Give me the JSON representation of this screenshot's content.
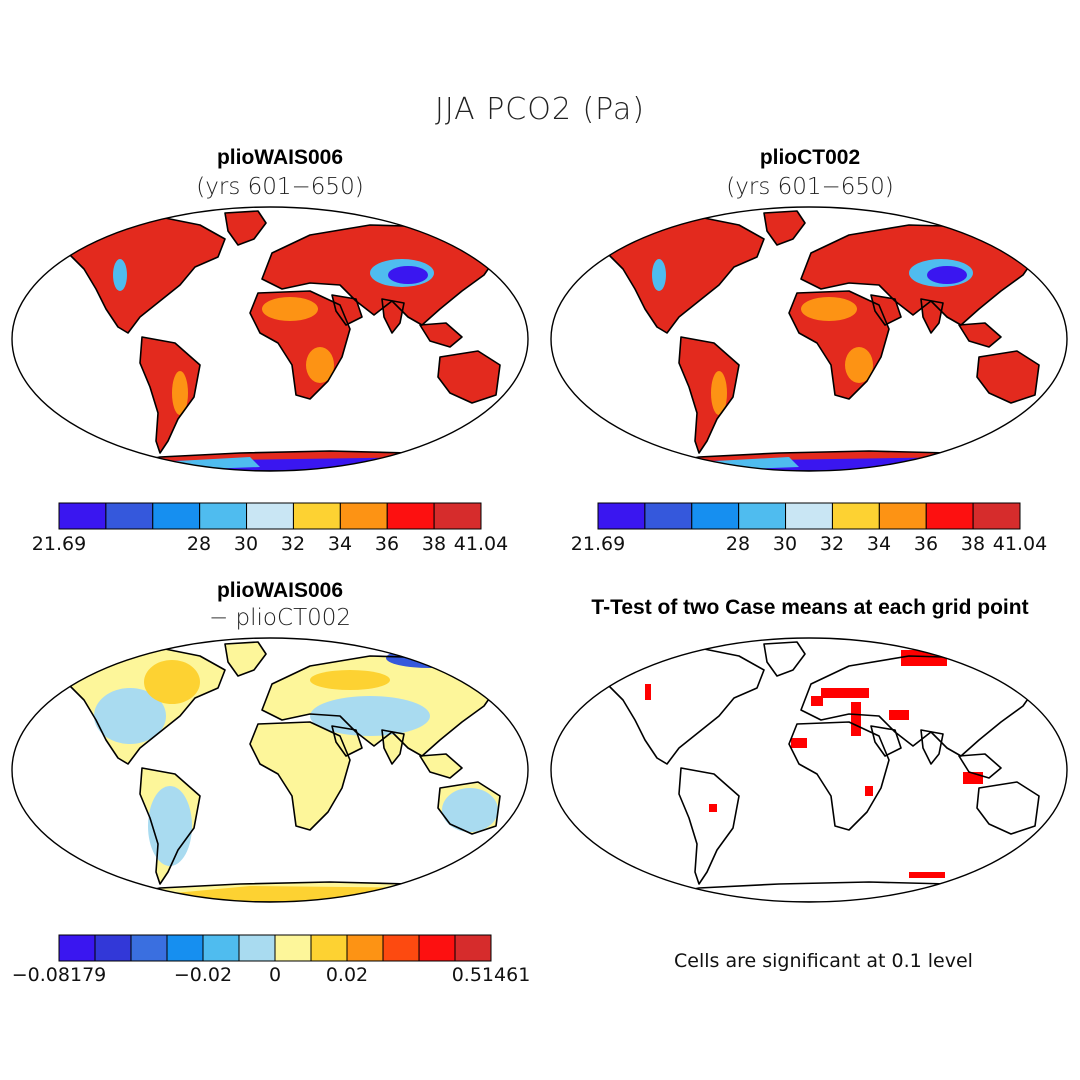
{
  "title": "JJA PCO2 (Pa)",
  "panels": [
    {
      "id": "p1",
      "title": "plioWAIS006",
      "subtitle": "(yrs 601−650)",
      "scheme": "abs"
    },
    {
      "id": "p2",
      "title": "plioCT002",
      "subtitle": "(yrs 601−650)",
      "scheme": "abs"
    },
    {
      "id": "p3",
      "title": "plioWAIS006",
      "subtitle": "− plioCT002",
      "scheme": "diff"
    },
    {
      "id": "p4",
      "title": "T-Test of two Case means at each grid point",
      "subtitle": "",
      "scheme": "ttest"
    }
  ],
  "colorbar_abs": {
    "colors": [
      "#3a16f0",
      "#3558dc",
      "#168ff0",
      "#4fbcef",
      "#c9e6f4",
      "#fdd232",
      "#fd9314",
      "#fd1010",
      "#d62c2c"
    ],
    "ticks": [
      "21.69",
      "28",
      "30",
      "32",
      "34",
      "36",
      "38",
      "41.04"
    ]
  },
  "colorbar_diff": {
    "colors": [
      "#3a16f0",
      "#3238d8",
      "#3a6fe0",
      "#168ff0",
      "#4fbcef",
      "#a9dbf0",
      "#fdf69a",
      "#fdd232",
      "#fd9314",
      "#fd4a10",
      "#fd1010",
      "#d62c2c"
    ],
    "ticks": [
      "−0.08179",
      "−0.02",
      "0",
      "0.02",
      "0.51461"
    ]
  },
  "significance_note": "Cells are significant at 0.1 level",
  "map_fills": {
    "abs_land": "#e32a1e",
    "abs_hot": "#c82a2a",
    "abs_orange": "#fd9314",
    "abs_blue": "#3a16f0",
    "abs_lightblue": "#4fbcef",
    "diff_land": "#fdf69a",
    "diff_blue": "#a9dbf0",
    "diff_orange": "#fdd232",
    "ttest_red": "#ff0000"
  }
}
